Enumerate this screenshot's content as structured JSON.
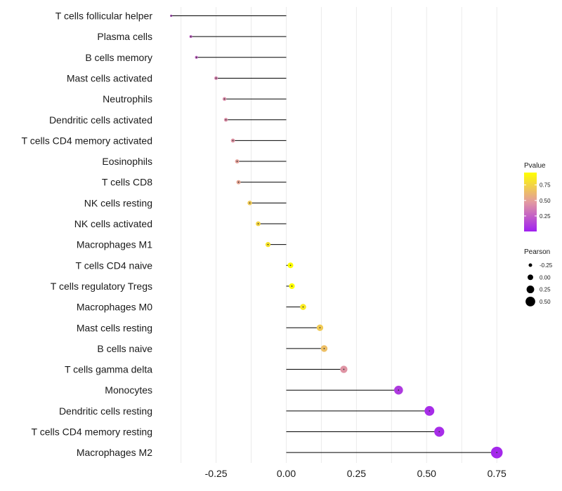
{
  "chart_data": {
    "type": "lollipop",
    "categories": [
      "T cells follicular helper",
      "Plasma cells",
      "B cells memory",
      "Mast cells activated",
      "Neutrophils",
      "Dendritic cells activated",
      "T cells CD4 memory activated",
      "Eosinophils",
      "T cells CD8",
      "NK cells resting",
      "NK cells activated",
      "Macrophages M1",
      "T cells CD4 naive",
      "T cells regulatory  Tregs ",
      "Macrophages M0",
      "Mast cells resting",
      "B cells naive",
      "T cells gamma delta",
      "Monocytes",
      "Dendritic cells resting",
      "T cells CD4 memory resting",
      "Macrophages M2"
    ],
    "values": [
      -0.41,
      -0.34,
      -0.32,
      -0.25,
      -0.22,
      -0.215,
      -0.19,
      -0.175,
      -0.17,
      -0.13,
      -0.1,
      -0.065,
      0.015,
      0.02,
      0.06,
      0.12,
      0.135,
      0.205,
      0.4,
      0.51,
      0.545,
      0.75
    ],
    "pvalues": [
      0.2,
      0.25,
      0.25,
      0.38,
      0.42,
      0.43,
      0.45,
      0.5,
      0.52,
      0.7,
      0.75,
      0.82,
      0.95,
      0.95,
      0.85,
      0.7,
      0.65,
      0.45,
      0.1,
      0.05,
      0.05,
      0.03
    ],
    "xlabel": "",
    "ylabel": "",
    "xlim": [
      -0.45,
      0.8
    ],
    "xticks": [
      -0.25,
      0.0,
      0.25,
      0.5,
      0.75
    ],
    "xtick_labels": [
      "-0.25",
      "0.00",
      "0.25",
      "0.50",
      "0.75"
    ],
    "color_legend": {
      "title": "Pvalue",
      "ticks": [
        0.25,
        0.5,
        0.75
      ],
      "tick_labels": [
        "0.25",
        "0.50",
        "0.75"
      ],
      "range": [
        0.0,
        0.95
      ],
      "low_color": "#a020f0",
      "mid_color": "#e39aa0",
      "high_color": "#ffff00"
    },
    "size_legend": {
      "title": "Pearson",
      "values": [
        -0.25,
        0.0,
        0.25,
        0.5
      ],
      "labels": [
        "-0.25",
        "0.00",
        "0.25",
        "0.50"
      ]
    }
  }
}
